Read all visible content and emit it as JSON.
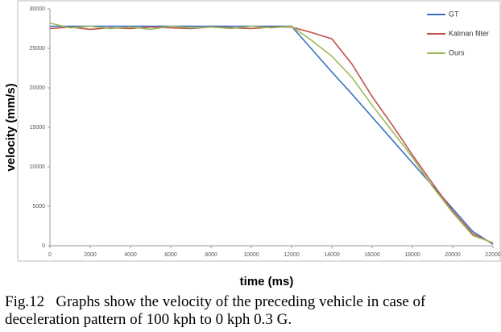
{
  "chart_data": {
    "type": "line",
    "xlabel": "time (ms)",
    "ylabel": "velocity (mm/s)",
    "x": [
      0,
      1000,
      2000,
      3000,
      4000,
      5000,
      6000,
      7000,
      8000,
      9000,
      10000,
      11000,
      12000,
      13000,
      14000,
      15000,
      16000,
      17000,
      18000,
      19000,
      20000,
      21000,
      22000
    ],
    "series": [
      {
        "name": "GT",
        "color": "#3c6fc2",
        "values": [
          27800,
          27800,
          27800,
          27800,
          27800,
          27800,
          27800,
          27800,
          27800,
          27800,
          27800,
          27800,
          27800,
          24900,
          22000,
          19200,
          16300,
          13400,
          10500,
          7600,
          4700,
          1800,
          200
        ]
      },
      {
        "name": "Kalman filter",
        "color": "#c0504d",
        "values": [
          27500,
          27700,
          27400,
          27600,
          27500,
          27700,
          27600,
          27500,
          27700,
          27600,
          27500,
          27700,
          27700,
          27000,
          26200,
          23000,
          18900,
          15300,
          11500,
          7900,
          4400,
          1500,
          300
        ]
      },
      {
        "name": "Ours",
        "color": "#9bbb59",
        "values": [
          28200,
          27600,
          27800,
          27500,
          27700,
          27400,
          27800,
          27600,
          27700,
          27500,
          27800,
          27600,
          27800,
          26000,
          24000,
          21300,
          17800,
          14500,
          11200,
          7500,
          4200,
          1300,
          400
        ]
      }
    ],
    "xlim": [
      0,
      22000
    ],
    "ylim": [
      0,
      30000
    ],
    "xticks": [
      0,
      2000,
      4000,
      6000,
      8000,
      10000,
      12000,
      14000,
      16000,
      18000,
      20000,
      22000
    ],
    "yticks": [
      0,
      5000,
      10000,
      15000,
      20000,
      25000,
      30000
    ]
  },
  "caption": {
    "line1": "Fig.12   Graphs show the velocity of the preceding vehicle in case of",
    "line2": "deceleration pattern of 100 kph to 0 kph 0.3 G."
  }
}
